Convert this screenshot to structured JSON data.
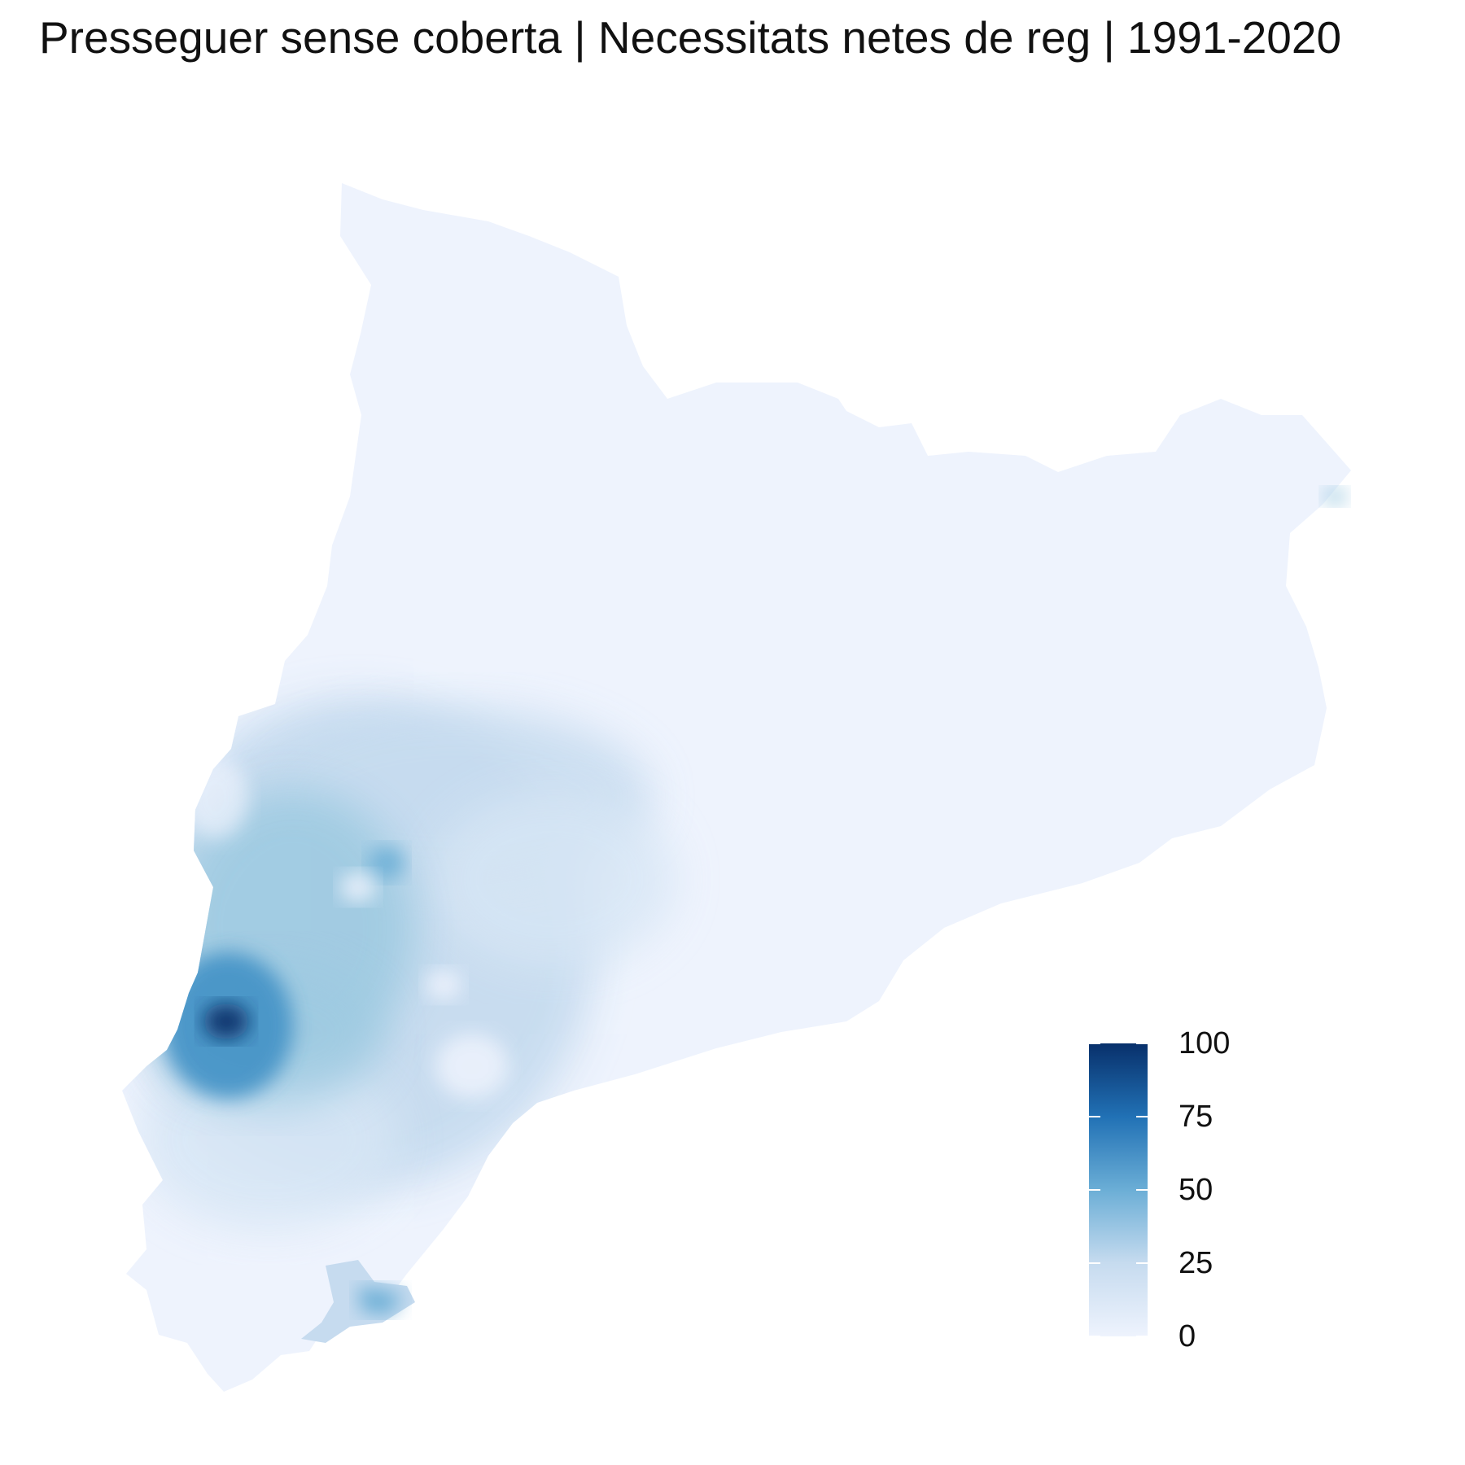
{
  "title": "Presseguer sense coberta | Necessitats netes de reg | 1991-2020",
  "legend": {
    "min": 0,
    "max": 100,
    "tick_labels": [
      "100",
      "75",
      "50",
      "25",
      "0"
    ],
    "tick_values": [
      100,
      75,
      50,
      25,
      0
    ],
    "color_scale": [
      "#eef3fd",
      "#c6dbef",
      "#6baed6",
      "#2171b5",
      "#08306b"
    ]
  },
  "map": {
    "base_color": "#eef3fd",
    "hotspot_color": "#08306b"
  }
}
